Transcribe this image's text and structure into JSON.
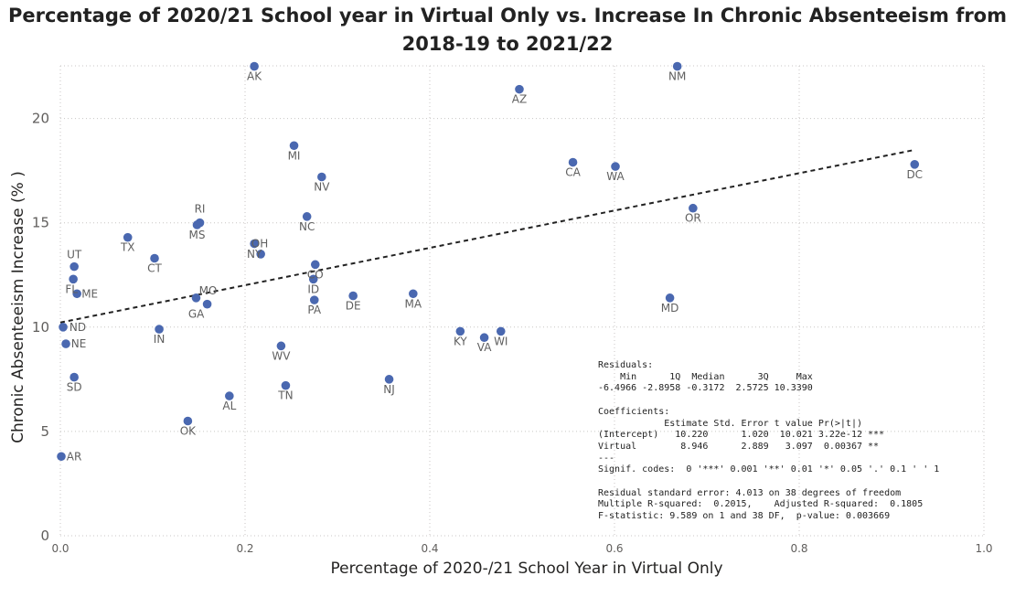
{
  "chart_data": {
    "type": "scatter",
    "title": "Percentage of 2020/21 School year in Virtual Only vs. Increase In Chronic Absenteeism from\n2018-19 to 2021/22",
    "xlabel": "Percentage of 2020-/21 School Year in Virtual Only",
    "ylabel": "Chronic Absenteeism Increase (% )",
    "xlim": [
      0,
      1.0
    ],
    "ylim": [
      0,
      22.5
    ],
    "xticks": [
      0.0,
      0.2,
      0.4,
      0.6,
      0.8,
      1.0
    ],
    "xtick_labels": [
      "0.0",
      "0.2",
      "0.4",
      "0.6",
      "0.8",
      "1.0"
    ],
    "yticks": [
      0,
      5,
      10,
      15,
      20
    ],
    "ytick_labels": [
      "0",
      "5",
      "10",
      "15",
      "20"
    ],
    "grid": true,
    "marker_color": "#4a68b0",
    "trendline": {
      "intercept": 10.22,
      "slope": 8.946,
      "x_start": 0.0,
      "x_end": 0.925,
      "style": "dashed",
      "color": "#222222"
    },
    "points": [
      {
        "label": "AK",
        "x": 0.21,
        "y": 22.5
      },
      {
        "label": "NM",
        "x": 0.668,
        "y": 22.5
      },
      {
        "label": "AZ",
        "x": 0.497,
        "y": 21.4
      },
      {
        "label": "MI",
        "x": 0.253,
        "y": 18.7
      },
      {
        "label": "NV",
        "x": 0.283,
        "y": 17.2
      },
      {
        "label": "CA",
        "x": 0.555,
        "y": 17.9
      },
      {
        "label": "WA",
        "x": 0.601,
        "y": 17.7
      },
      {
        "label": "DC",
        "x": 0.925,
        "y": 17.8
      },
      {
        "label": "NC",
        "x": 0.267,
        "y": 15.3
      },
      {
        "label": "OR",
        "x": 0.685,
        "y": 15.7
      },
      {
        "label": "RI",
        "x": 0.151,
        "y": 15.0
      },
      {
        "label": "MS",
        "x": 0.148,
        "y": 14.9
      },
      {
        "label": "TX",
        "x": 0.073,
        "y": 14.3
      },
      {
        "label": "OH",
        "x": 0.21,
        "y": 14.0
      },
      {
        "label": "NY",
        "x": 0.217,
        "y": 13.5
      },
      {
        "label": "CT",
        "x": 0.102,
        "y": 13.3
      },
      {
        "label": "UT",
        "x": 0.015,
        "y": 12.9
      },
      {
        "label": "CO",
        "x": 0.276,
        "y": 13.0
      },
      {
        "label": "ID",
        "x": 0.274,
        "y": 12.3
      },
      {
        "label": "FL",
        "x": 0.014,
        "y": 12.3
      },
      {
        "label": "ME",
        "x": 0.018,
        "y": 11.6
      },
      {
        "label": "DE",
        "x": 0.317,
        "y": 11.5
      },
      {
        "label": "MA",
        "x": 0.382,
        "y": 11.6
      },
      {
        "label": "MO",
        "x": 0.147,
        "y": 11.4
      },
      {
        "label": "GA",
        "x": 0.159,
        "y": 11.1
      },
      {
        "label": "PA",
        "x": 0.275,
        "y": 11.3
      },
      {
        "label": "MD",
        "x": 0.66,
        "y": 11.4
      },
      {
        "label": "ND",
        "x": 0.003,
        "y": 10.0
      },
      {
        "label": "IN",
        "x": 0.107,
        "y": 9.9
      },
      {
        "label": "KY",
        "x": 0.433,
        "y": 9.8
      },
      {
        "label": "WI",
        "x": 0.477,
        "y": 9.8
      },
      {
        "label": "VA",
        "x": 0.459,
        "y": 9.5
      },
      {
        "label": "NE",
        "x": 0.006,
        "y": 9.2
      },
      {
        "label": "WV",
        "x": 0.239,
        "y": 9.1
      },
      {
        "label": "SD",
        "x": 0.015,
        "y": 7.6
      },
      {
        "label": "NJ",
        "x": 0.356,
        "y": 7.5
      },
      {
        "label": "TN",
        "x": 0.244,
        "y": 7.2
      },
      {
        "label": "AL",
        "x": 0.183,
        "y": 6.7
      },
      {
        "label": "OK",
        "x": 0.138,
        "y": 5.5
      },
      {
        "label": "AR",
        "x": 0.001,
        "y": 3.8
      }
    ]
  },
  "stats_text": "Residuals:\n    Min      1Q  Median      3Q     Max \n-6.4966 -2.8958 -0.3172  2.5725 10.3390 \n\nCoefficients:\n            Estimate Std. Error t value Pr(>|t|)    \n(Intercept)   10.220      1.020  10.021 3.22e-12 ***\nVirtual        8.946      2.889   3.097  0.00367 ** \n---\nSignif. codes:  0 '***' 0.001 '**' 0.01 '*' 0.05 '.' 0.1 ' ' 1\n\nResidual standard error: 4.013 on 38 degrees of freedom\nMultiple R-squared:  0.2015,\tAdjusted R-squared:  0.1805 \nF-statistic: 9.589 on 1 and 38 DF,  p-value: 0.003669"
}
